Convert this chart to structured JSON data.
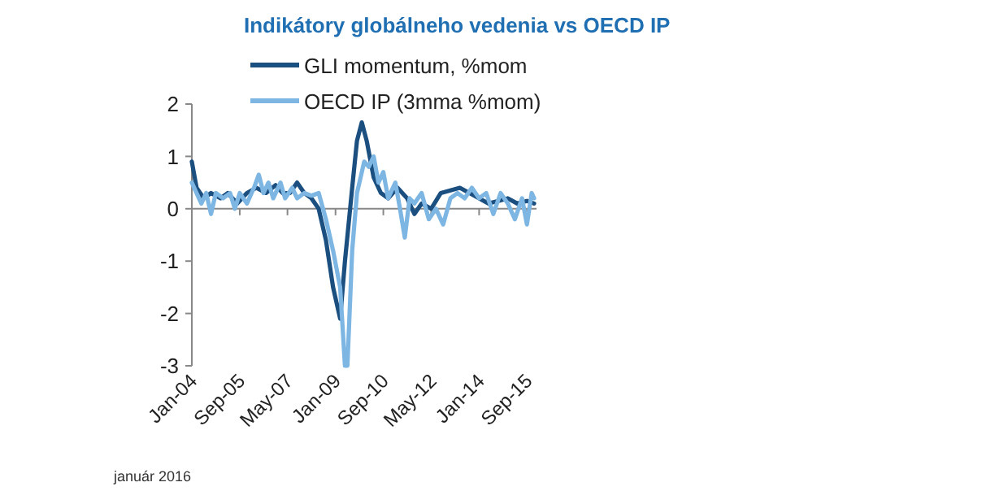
{
  "chart_data": {
    "type": "line",
    "title": "Indikátory globálneho vedenia vs OECD IP",
    "annotations": [
      "január 2016"
    ],
    "xlim": [
      "2004-01",
      "2016-01"
    ],
    "xticks": [
      {
        "value": "2004-01",
        "label": "Jan-04"
      },
      {
        "value": "2005-09",
        "label": "Sep-05"
      },
      {
        "value": "2007-05",
        "label": "May-07"
      },
      {
        "value": "2009-01",
        "label": "Jan-09"
      },
      {
        "value": "2010-09",
        "label": "Sep-10"
      },
      {
        "value": "2012-05",
        "label": "May-12"
      },
      {
        "value": "2014-01",
        "label": "Jan-14"
      },
      {
        "value": "2015-09",
        "label": "Sep-15"
      }
    ],
    "ylim": [
      -3,
      2
    ],
    "yticks": [
      -3,
      -2,
      -1,
      0,
      1,
      2
    ],
    "legend": "top",
    "line_style": "solid",
    "marker": "none",
    "series": [
      {
        "name": "GLI momentum, %mom",
        "color": "#1b4f80",
        "x": [
          "2004-01",
          "2004-03",
          "2004-06",
          "2004-09",
          "2005-01",
          "2005-04",
          "2005-08",
          "2005-12",
          "2006-04",
          "2006-08",
          "2006-12",
          "2007-03",
          "2007-06",
          "2007-09",
          "2007-12",
          "2008-03",
          "2008-06",
          "2008-09",
          "2008-12",
          "2009-03",
          "2009-05",
          "2009-08",
          "2009-10",
          "2009-12",
          "2010-02",
          "2010-05",
          "2010-08",
          "2010-11",
          "2011-03",
          "2011-07",
          "2011-10",
          "2012-01",
          "2012-05",
          "2012-09",
          "2013-01",
          "2013-05",
          "2013-09",
          "2014-01",
          "2014-05",
          "2014-09",
          "2015-01",
          "2015-05",
          "2015-09",
          "2015-12"
        ],
        "values": [
          0.9,
          0.4,
          0.2,
          0.3,
          0.2,
          0.3,
          0.1,
          0.3,
          0.4,
          0.3,
          0.45,
          0.3,
          0.3,
          0.5,
          0.3,
          0.2,
          0.0,
          -0.6,
          -1.5,
          -2.1,
          -1.0,
          0.4,
          1.3,
          1.65,
          1.3,
          0.6,
          0.3,
          0.2,
          0.4,
          0.2,
          -0.1,
          0.1,
          0.0,
          0.3,
          0.35,
          0.4,
          0.3,
          0.2,
          0.1,
          0.15,
          0.2,
          0.1,
          0.15,
          0.1
        ]
      },
      {
        "name": "OECD IP (3mma %mom)",
        "color": "#7db6e2",
        "x": [
          "2004-01",
          "2004-03",
          "2004-05",
          "2004-07",
          "2004-09",
          "2004-11",
          "2005-02",
          "2005-05",
          "2005-07",
          "2005-09",
          "2005-12",
          "2006-03",
          "2006-05",
          "2006-07",
          "2006-09",
          "2006-11",
          "2007-02",
          "2007-04",
          "2007-07",
          "2007-09",
          "2007-12",
          "2008-03",
          "2008-06",
          "2008-09",
          "2008-12",
          "2009-03",
          "2009-05",
          "2009-06",
          "2009-08",
          "2009-10",
          "2010-01",
          "2010-03",
          "2010-05",
          "2010-07",
          "2010-09",
          "2010-11",
          "2011-02",
          "2011-04",
          "2011-06",
          "2011-08",
          "2011-10",
          "2012-01",
          "2012-04",
          "2012-07",
          "2012-10",
          "2013-01",
          "2013-04",
          "2013-07",
          "2013-10",
          "2014-01",
          "2014-04",
          "2014-07",
          "2014-10",
          "2015-01",
          "2015-04",
          "2015-07",
          "2015-09",
          "2015-11",
          "2015-12"
        ],
        "values": [
          0.5,
          0.3,
          0.1,
          0.3,
          -0.1,
          0.3,
          0.2,
          0.3,
          0.0,
          0.3,
          0.1,
          0.4,
          0.65,
          0.3,
          0.5,
          0.2,
          0.5,
          0.2,
          0.4,
          0.2,
          0.3,
          0.25,
          0.3,
          -0.2,
          -0.8,
          -1.5,
          -3.0,
          -3.0,
          -0.8,
          0.3,
          0.9,
          0.8,
          1.0,
          0.5,
          0.7,
          0.2,
          0.5,
          0.0,
          -0.55,
          0.2,
          0.1,
          0.3,
          -0.2,
          0.0,
          -0.3,
          0.2,
          0.3,
          0.2,
          0.4,
          0.2,
          0.3,
          -0.1,
          0.3,
          0.1,
          -0.2,
          0.2,
          -0.3,
          0.3,
          0.2
        ]
      }
    ]
  }
}
